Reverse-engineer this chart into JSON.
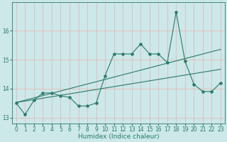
{
  "xlabel": "Humidex (Indice chaleur)",
  "x_values": [
    0,
    1,
    2,
    3,
    4,
    5,
    6,
    7,
    8,
    9,
    10,
    11,
    12,
    13,
    14,
    15,
    16,
    17,
    18,
    19,
    20,
    21,
    22,
    23
  ],
  "line1": [
    13.5,
    13.1,
    13.6,
    13.85,
    13.85,
    13.75,
    13.7,
    13.4,
    13.4,
    13.5,
    14.45,
    15.2,
    15.2,
    15.2,
    15.55,
    15.2,
    15.2,
    14.9,
    16.65,
    14.95,
    14.15,
    13.9,
    13.9,
    14.2
  ],
  "reg1": [
    13.52,
    13.57,
    13.62,
    13.67,
    13.72,
    13.77,
    13.82,
    13.87,
    13.92,
    13.97,
    14.02,
    14.07,
    14.12,
    14.17,
    14.22,
    14.27,
    14.32,
    14.37,
    14.42,
    14.47,
    14.52,
    14.57,
    14.62,
    14.67
  ],
  "reg2": [
    13.52,
    13.6,
    13.68,
    13.76,
    13.84,
    13.92,
    14.0,
    14.08,
    14.16,
    14.24,
    14.32,
    14.4,
    14.48,
    14.56,
    14.64,
    14.72,
    14.8,
    14.88,
    14.96,
    15.04,
    15.12,
    15.2,
    15.28,
    15.36
  ],
  "bg_color": "#cce8e8",
  "line_color": "#2a7a6a",
  "grid_color": "#e8b0b0",
  "ylim": [
    12.8,
    17.0
  ],
  "yticks": [
    13,
    14,
    15,
    16
  ],
  "xticks": [
    0,
    1,
    2,
    3,
    4,
    5,
    6,
    7,
    8,
    9,
    10,
    11,
    12,
    13,
    14,
    15,
    16,
    17,
    18,
    19,
    20,
    21,
    22,
    23
  ],
  "tick_fontsize": 5.5,
  "label_fontsize": 6.5
}
